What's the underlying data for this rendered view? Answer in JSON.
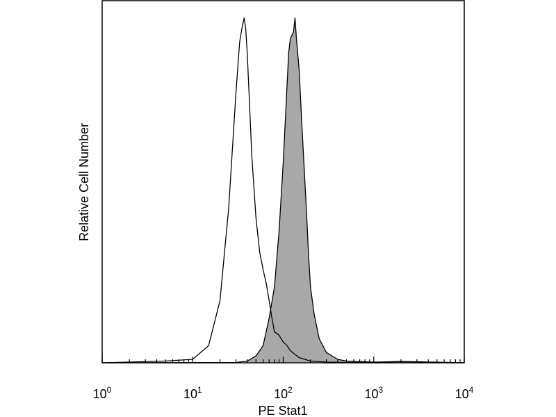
{
  "chart_data": {
    "type": "area",
    "xlabel": "PE Stat1",
    "ylabel": "Relative Cell Number",
    "x_scale": "log",
    "xlim": [
      1,
      10000
    ],
    "ylim": [
      0,
      1.05
    ],
    "x_ticks": [
      {
        "base": "10",
        "exp": "0"
      },
      {
        "base": "10",
        "exp": "1"
      },
      {
        "base": "10",
        "exp": "2"
      },
      {
        "base": "10",
        "exp": "3"
      },
      {
        "base": "10",
        "exp": "4"
      }
    ],
    "y_ticks": [],
    "grid": false,
    "series": [
      {
        "style": "outline",
        "color": "#000000",
        "x": [
          1,
          5,
          10,
          15,
          20,
          25,
          30,
          33,
          35,
          37,
          38.5,
          40,
          42,
          45,
          50,
          55,
          60,
          65,
          70,
          75,
          80,
          90,
          100,
          110,
          120,
          150,
          200,
          300,
          500,
          1000,
          2000,
          10000
        ],
        "y": [
          0,
          0.005,
          0.01,
          0.05,
          0.18,
          0.45,
          0.78,
          0.93,
          0.97,
          1.0,
          0.97,
          0.9,
          0.78,
          0.6,
          0.42,
          0.32,
          0.27,
          0.23,
          0.18,
          0.13,
          0.09,
          0.08,
          0.06,
          0.05,
          0.035,
          0.015,
          0.005,
          0.002,
          0.001,
          0.001,
          0.003,
          0
        ]
      },
      {
        "style": "filled",
        "color": "#a8a8a8",
        "x": [
          1,
          30,
          40,
          50,
          60,
          70,
          80,
          90,
          100,
          110,
          115,
          120,
          130,
          135,
          140,
          150,
          160,
          170,
          180,
          190,
          200,
          220,
          250,
          300,
          400,
          500,
          1000,
          2000,
          10000
        ],
        "y": [
          0,
          0.001,
          0.005,
          0.02,
          0.05,
          0.13,
          0.22,
          0.38,
          0.58,
          0.8,
          0.9,
          0.94,
          0.96,
          1.0,
          0.94,
          0.85,
          0.7,
          0.57,
          0.45,
          0.32,
          0.22,
          0.14,
          0.07,
          0.03,
          0.01,
          0.005,
          0.002,
          0.004,
          0
        ]
      }
    ]
  }
}
